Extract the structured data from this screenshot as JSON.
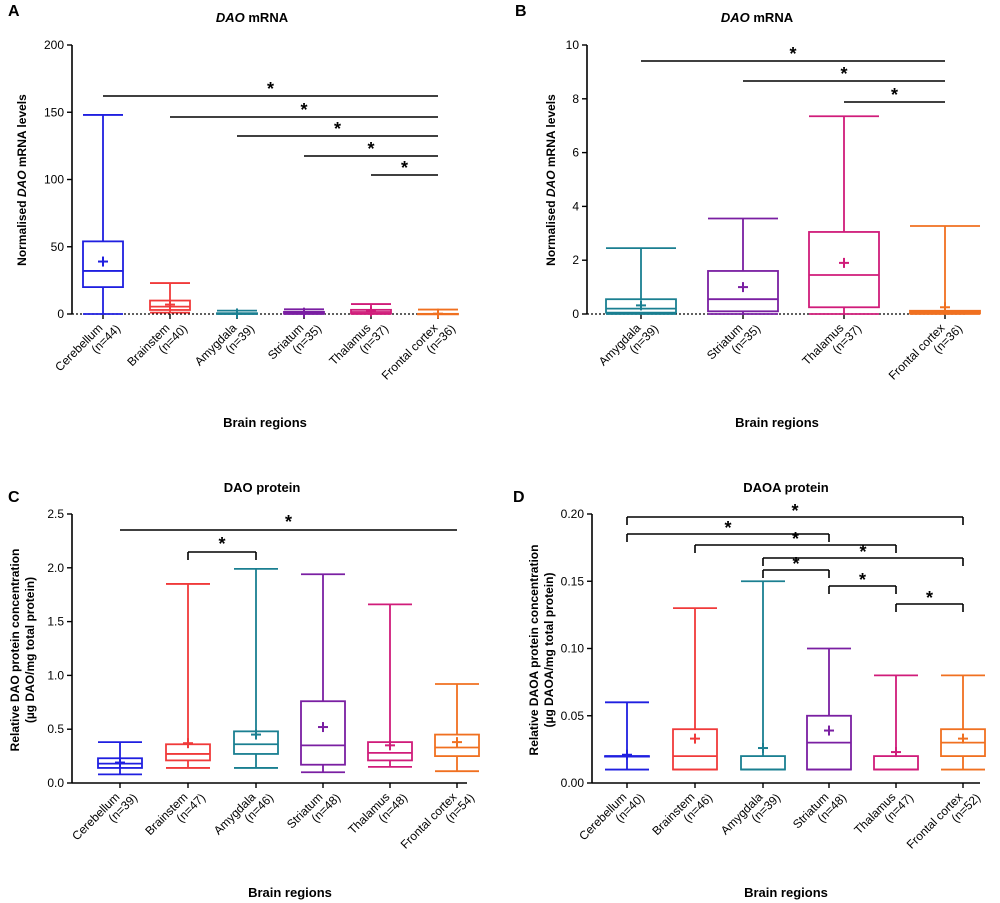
{
  "chart_data": [
    {
      "panel": "A",
      "type": "boxplot",
      "title_italic": "DAO",
      "title_rest": " mRNA",
      "ylabel_lines": [
        [
          "Normalised ",
          "DAO",
          " mRNA levels"
        ]
      ],
      "xlabel": "Brain regions",
      "ylim": [
        0,
        200
      ],
      "yticks": [
        "0",
        "50",
        "100",
        "150",
        "200"
      ],
      "ytick_values": [
        0,
        50,
        100,
        150,
        200
      ],
      "reference_line": 0,
      "categories": [
        {
          "name": "Cerebellum",
          "n": "(n=44)",
          "color": "#1f1fe0",
          "min": 0,
          "q1": 20,
          "median": 32,
          "q3": 54,
          "max": 148,
          "mean": 39
        },
        {
          "name": "Brainstem",
          "n": "(n=40)",
          "color": "#f03a3a",
          "min": 1,
          "q1": 3,
          "median": 5.5,
          "q3": 10,
          "max": 23,
          "mean": 7
        },
        {
          "name": "Amygdala",
          "n": "(n=39)",
          "color": "#1a7f91",
          "min": 0,
          "q1": 0.1,
          "median": 0.3,
          "q3": 0.6,
          "max": 2.5,
          "mean": 0.4
        },
        {
          "name": "Striatum",
          "n": "(n=35)",
          "color": "#7a1fa2",
          "min": 0,
          "q1": 0.2,
          "median": 0.6,
          "q3": 1.6,
          "max": 3.5,
          "mean": 1
        },
        {
          "name": "Thalamus",
          "n": "(n=37)",
          "color": "#d01c7a",
          "min": 0,
          "q1": 0.3,
          "median": 1.5,
          "q3": 3.1,
          "max": 7.4,
          "mean": 1.9
        },
        {
          "name": "Frontal cortex",
          "n": "(n=36)",
          "color": "#f07020",
          "min": 0,
          "q1": 0.02,
          "median": 0.05,
          "q3": 0.12,
          "max": 3.3,
          "mean": 0.25
        }
      ],
      "significance": [
        {
          "from": 0,
          "to": 5,
          "label": "*",
          "style": "line"
        },
        {
          "from": 1,
          "to": 5,
          "label": "*",
          "style": "line"
        },
        {
          "from": 2,
          "to": 5,
          "label": "*",
          "style": "line"
        },
        {
          "from": 3,
          "to": 5,
          "label": "*",
          "style": "line"
        },
        {
          "from": 4,
          "to": 5,
          "label": "*",
          "style": "line"
        }
      ]
    },
    {
      "panel": "B",
      "type": "boxplot",
      "title_italic": "DAO",
      "title_rest": " mRNA",
      "ylabel_lines": [
        [
          "Normalised ",
          "DAO",
          " mRNA levels"
        ]
      ],
      "xlabel": "Brain regions",
      "ylim": [
        0,
        10
      ],
      "yticks": [
        "0",
        "2",
        "4",
        "6",
        "8",
        "10"
      ],
      "ytick_values": [
        0,
        2,
        4,
        6,
        8,
        10
      ],
      "reference_line": 0,
      "categories": [
        {
          "name": "Amygdala",
          "n": "(n=39)",
          "color": "#1a7f91",
          "min": 0,
          "q1": 0.05,
          "median": 0.2,
          "q3": 0.55,
          "max": 2.45,
          "mean": 0.32
        },
        {
          "name": "Striatum",
          "n": "(n=35)",
          "color": "#7a1fa2",
          "min": 0,
          "q1": 0.1,
          "median": 0.55,
          "q3": 1.6,
          "max": 3.55,
          "mean": 1.0
        },
        {
          "name": "Thalamus",
          "n": "(n=37)",
          "color": "#d01c7a",
          "min": 0,
          "q1": 0.25,
          "median": 1.45,
          "q3": 3.05,
          "max": 7.35,
          "mean": 1.9
        },
        {
          "name": "Frontal cortex",
          "n": "(n=36)",
          "color": "#f07020",
          "min": 0,
          "q1": 0.02,
          "median": 0.06,
          "q3": 0.12,
          "max": 3.27,
          "mean": 0.25
        }
      ],
      "significance": [
        {
          "from": 0,
          "to": 3,
          "label": "*",
          "style": "line"
        },
        {
          "from": 1,
          "to": 3,
          "label": "*",
          "style": "line"
        },
        {
          "from": 2,
          "to": 3,
          "label": "*",
          "style": "line"
        }
      ]
    },
    {
      "panel": "C",
      "type": "boxplot",
      "title_italic": "",
      "title_rest": "DAO protein",
      "ylabel_lines": [
        [
          "Relative DAO protein concentration"
        ],
        [
          "(µg DAO/mg total protein)"
        ]
      ],
      "xlabel": "Brain regions",
      "ylim": [
        0,
        2.5
      ],
      "yticks": [
        "0.0",
        "0.5",
        "1.0",
        "1.5",
        "2.0",
        "2.5"
      ],
      "ytick_values": [
        0,
        0.5,
        1.0,
        1.5,
        2.0,
        2.5
      ],
      "reference_line": null,
      "categories": [
        {
          "name": "Cerebellum",
          "n": "(n=39)",
          "color": "#1f1fe0",
          "min": 0.08,
          "q1": 0.14,
          "median": 0.18,
          "q3": 0.23,
          "max": 0.38,
          "mean": 0.19
        },
        {
          "name": "Brainstem",
          "n": "(n=47)",
          "color": "#f03a3a",
          "min": 0.14,
          "q1": 0.21,
          "median": 0.27,
          "q3": 0.36,
          "max": 1.85,
          "mean": 0.37
        },
        {
          "name": "Amygdala",
          "n": "(n=46)",
          "color": "#1a7f91",
          "min": 0.14,
          "q1": 0.27,
          "median": 0.36,
          "q3": 0.48,
          "max": 1.99,
          "mean": 0.45
        },
        {
          "name": "Striatum",
          "n": "(n=48)",
          "color": "#7a1fa2",
          "min": 0.1,
          "q1": 0.17,
          "median": 0.35,
          "q3": 0.76,
          "max": 1.94,
          "mean": 0.52
        },
        {
          "name": "Thalamus",
          "n": "(n=48)",
          "color": "#d01c7a",
          "min": 0.15,
          "q1": 0.21,
          "median": 0.28,
          "q3": 0.38,
          "max": 1.66,
          "mean": 0.35
        },
        {
          "name": "Frontal cortex",
          "n": "(n=54)",
          "color": "#f07020",
          "min": 0.11,
          "q1": 0.25,
          "median": 0.33,
          "q3": 0.45,
          "max": 0.92,
          "mean": 0.38
        }
      ],
      "significance": [
        {
          "from": 0,
          "to": 5,
          "label": "*",
          "style": "line"
        },
        {
          "from": 1,
          "to": 2,
          "label": "*",
          "style": "bracket"
        }
      ]
    },
    {
      "panel": "D",
      "type": "boxplot",
      "title_italic": "",
      "title_rest": "DAOA protein",
      "ylabel_lines": [
        [
          "Relative DAOA protein concentration"
        ],
        [
          "(µg DAOA/mg total protein)"
        ]
      ],
      "xlabel": "Brain regions",
      "ylim": [
        0,
        0.2
      ],
      "yticks": [
        "0.00",
        "0.05",
        "0.10",
        "0.15",
        "0.20"
      ],
      "ytick_values": [
        0,
        0.05,
        0.1,
        0.15,
        0.2
      ],
      "reference_line": null,
      "categories": [
        {
          "name": "Cerebellum",
          "n": "(n=40)",
          "color": "#1f1fe0",
          "min": 0.01,
          "q1": 0.02,
          "median": 0.02,
          "q3": 0.02,
          "max": 0.06,
          "mean": 0.021
        },
        {
          "name": "Brainstem",
          "n": "(n=46)",
          "color": "#f03a3a",
          "min": 0.01,
          "q1": 0.01,
          "median": 0.02,
          "q3": 0.04,
          "max": 0.13,
          "mean": 0.033
        },
        {
          "name": "Amygdala",
          "n": "(n=39)",
          "color": "#1a7f91",
          "min": 0.01,
          "q1": 0.01,
          "median": 0.01,
          "q3": 0.02,
          "max": 0.15,
          "mean": 0.026
        },
        {
          "name": "Striatum",
          "n": "(n=48)",
          "color": "#7a1fa2",
          "min": 0.01,
          "q1": 0.01,
          "median": 0.03,
          "q3": 0.05,
          "max": 0.1,
          "mean": 0.039
        },
        {
          "name": "Thalamus",
          "n": "(n=47)",
          "color": "#d01c7a",
          "min": 0.01,
          "q1": 0.01,
          "median": 0.01,
          "q3": 0.02,
          "max": 0.08,
          "mean": 0.023
        },
        {
          "name": "Frontal cortex",
          "n": "(n=52)",
          "color": "#f07020",
          "min": 0.01,
          "q1": 0.02,
          "median": 0.03,
          "q3": 0.04,
          "max": 0.08,
          "mean": 0.033
        }
      ],
      "significance": [
        {
          "from": 0,
          "to": 5,
          "label": "*",
          "style": "bracket"
        },
        {
          "from": 0,
          "to": 3,
          "label": "*",
          "style": "bracket"
        },
        {
          "from": 1,
          "to": 4,
          "label": "*",
          "style": "bracket"
        },
        {
          "from": 2,
          "to": 5,
          "label": "*",
          "style": "bracket"
        },
        {
          "from": 2,
          "to": 3,
          "label": "*",
          "style": "bracket"
        },
        {
          "from": 3,
          "to": 4,
          "label": "*",
          "style": "bracket"
        },
        {
          "from": 4,
          "to": 5,
          "label": "*",
          "style": "bracket"
        }
      ]
    }
  ]
}
